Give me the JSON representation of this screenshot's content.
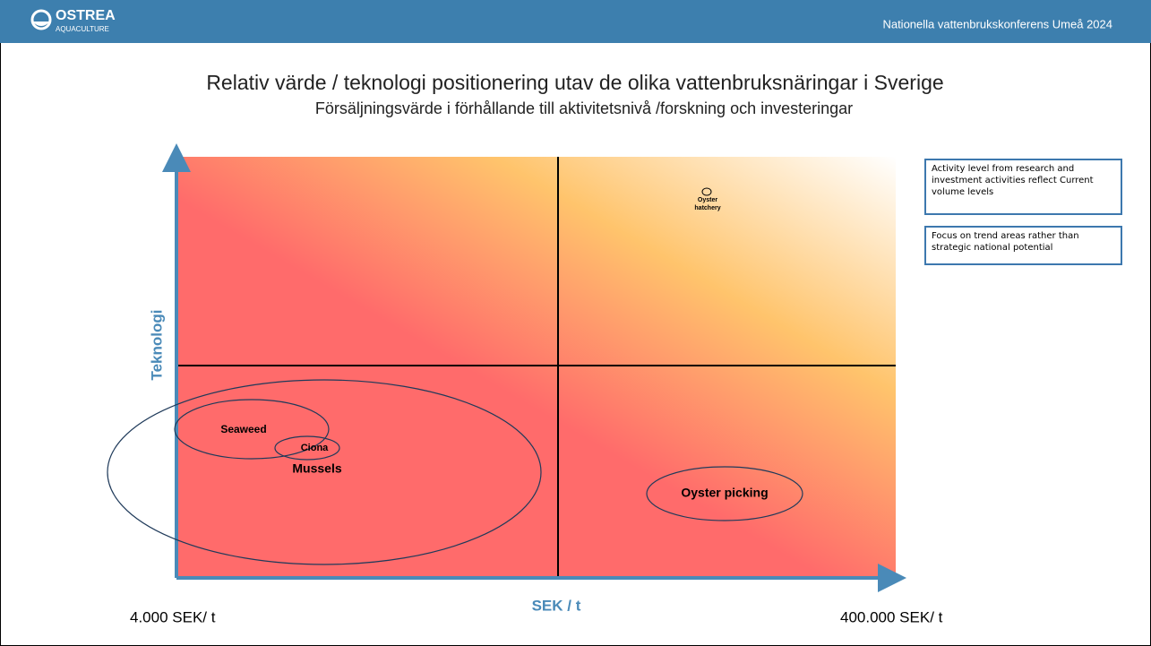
{
  "header": {
    "logo_name": "OSTREA",
    "logo_sub": "AQUACULTURE",
    "event": "Nationella vattenbrukskonferens Umeå 2024"
  },
  "title": "Relativ värde / teknologi positionering utav de olika vattenbruksnäringar i Sverige",
  "subtitle": "Försäljningsvärde i förhållande till aktivitetsnivå /forskning och investeringar",
  "axes": {
    "y_label": "Teknologi",
    "x_label": "SEK / t",
    "x_min_label": "4.000 SEK/ t",
    "x_max_label": "400.000 SEK/ t"
  },
  "nodes": [
    {
      "label": "Seaweed"
    },
    {
      "label": "Ciona"
    },
    {
      "label": "Mussels"
    },
    {
      "label": "Oyster picking"
    },
    {
      "label": "Oyster hatchery"
    }
  ],
  "notes": [
    "Activity level from research and investment activities reflect Current volume levels",
    "Focus on trend areas rather than strategic national potential"
  ]
}
